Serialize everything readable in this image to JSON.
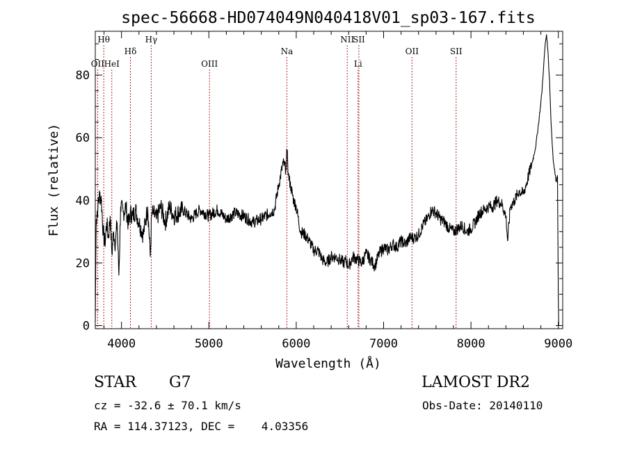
{
  "chart_data": {
    "type": "line",
    "title": "spec-56668-HD074049N040418V01_sp03-167.fits",
    "xlabel": "Wavelength (Å)",
    "ylabel": "Flux (relative)",
    "xlim": [
      3700,
      9050
    ],
    "ylim": [
      -1,
      94
    ],
    "x_ticks": [
      4000,
      5000,
      6000,
      7000,
      8000,
      9000
    ],
    "y_ticks": [
      0,
      20,
      40,
      60,
      80
    ],
    "grid": false,
    "series": [
      {
        "x": [
          3700,
          3710,
          3730,
          3750,
          3770,
          3790,
          3810,
          3830,
          3850,
          3870,
          3890,
          3910,
          3930,
          3950,
          3970,
          3990,
          4020,
          4050,
          4080,
          4100,
          4130,
          4160,
          4200,
          4250,
          4300,
          4330,
          4345,
          4360,
          4400,
          4450,
          4500,
          4550,
          4600,
          4700,
          4800,
          4860,
          4900,
          5000,
          5100,
          5200,
          5300,
          5400,
          5500,
          5600,
          5700,
          5750,
          5800,
          5850,
          5880,
          5895,
          5910,
          5940,
          5970,
          6000,
          6050,
          6100,
          6150,
          6200,
          6250,
          6300,
          6350,
          6400,
          6450,
          6500,
          6550,
          6563,
          6600,
          6650,
          6700,
          6750,
          6800,
          6850,
          6900,
          6950,
          7000,
          7050,
          7100,
          7150,
          7200,
          7250,
          7300,
          7350,
          7400,
          7450,
          7500,
          7550,
          7600,
          7650,
          7700,
          7750,
          7800,
          7850,
          7900,
          7950,
          8000,
          8050,
          8100,
          8150,
          8200,
          8250,
          8300,
          8350,
          8400,
          8420,
          8450,
          8500,
          8550,
          8600,
          8650,
          8700,
          8740,
          8780,
          8810,
          8830,
          8850,
          8865,
          8880,
          8900,
          8915,
          8930,
          8945,
          8960,
          8975,
          8990,
          9000,
          9005
        ],
        "y": [
          1,
          34,
          38,
          42,
          40,
          30,
          26,
          33,
          28,
          35,
          23,
          30,
          26,
          33,
          16,
          38,
          36,
          38,
          32,
          36,
          35,
          37,
          33,
          29,
          38,
          22,
          35,
          36,
          34,
          38,
          33,
          38,
          35,
          37,
          34,
          36,
          37,
          35,
          37,
          34,
          36,
          35,
          33,
          34,
          36,
          37,
          45,
          52,
          50,
          56,
          48,
          44,
          40,
          38,
          30,
          29,
          27,
          24,
          24,
          21,
          20,
          22,
          22,
          21,
          20,
          21,
          19,
          22,
          21,
          20,
          23,
          21,
          19,
          23,
          25,
          24,
          26,
          25,
          27,
          26,
          28,
          28,
          29,
          32,
          34,
          37,
          36,
          34,
          33,
          31,
          30,
          31,
          32,
          30,
          31,
          33,
          36,
          37,
          38,
          38,
          40,
          39,
          35,
          27,
          38,
          40,
          43,
          42,
          47,
          52,
          57,
          66,
          74,
          82,
          90,
          93,
          88,
          78,
          66,
          58,
          52,
          49,
          46,
          48,
          9,
          0
        ]
      }
    ],
    "line_markers": [
      {
        "label": "Hθ",
        "x": 3797,
        "row": 1
      },
      {
        "label": "OII",
        "x": 3727,
        "row": 3
      },
      {
        "label": "HeI",
        "x": 3889,
        "row": 3
      },
      {
        "label": "Hδ",
        "x": 4102,
        "row": 2
      },
      {
        "label": "Hγ",
        "x": 4340,
        "row": 1
      },
      {
        "label": "OIII",
        "x": 5007,
        "row": 3
      },
      {
        "label": "Na",
        "x": 5893,
        "row": 2
      },
      {
        "label": "NII",
        "x": 6584,
        "row": 1
      },
      {
        "label": "SII",
        "x": 6717,
        "row": 1
      },
      {
        "label": "Li",
        "x": 6708,
        "row": 3
      },
      {
        "label": "OII",
        "x": 7325,
        "row": 2
      },
      {
        "label": "SII",
        "x": 7830,
        "row": 2
      }
    ],
    "marker_color": "#b22222"
  },
  "info": {
    "class": "STAR",
    "subclass": "G7",
    "survey": "LAMOST DR2",
    "redshift": "cz = -32.6 ± 70.1 km/s",
    "obs_date": "Obs-Date: 20140110",
    "coords": "RA = 114.37123, DEC =    4.03356"
  }
}
